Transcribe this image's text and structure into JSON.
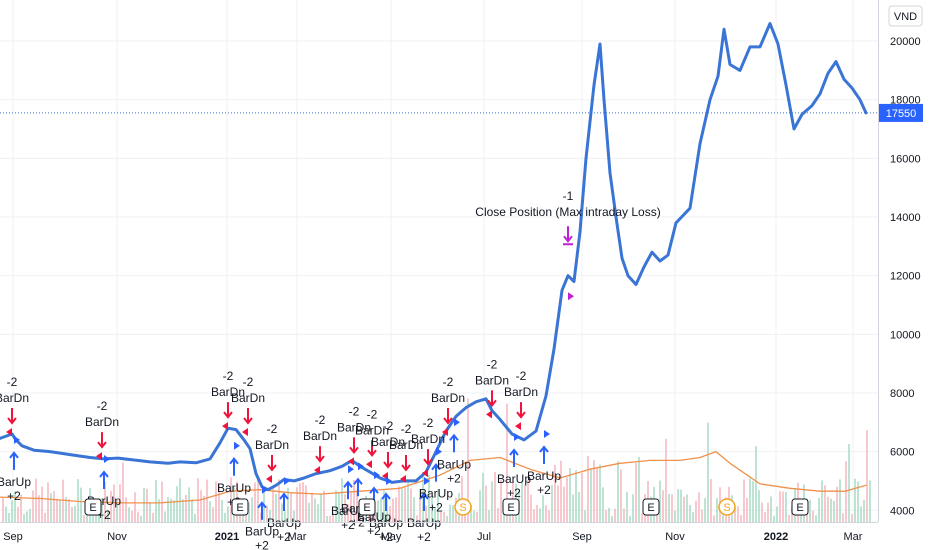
{
  "chart_data": {
    "type": "line",
    "currency": "VND",
    "last_price_label": "17550",
    "y_ticks": [
      4000,
      6000,
      8000,
      10000,
      12000,
      14000,
      16000,
      18000,
      20000
    ],
    "ylim": [
      3600,
      21400
    ],
    "x_tick_labels": [
      {
        "label": "Sep",
        "t": 13,
        "bold": false
      },
      {
        "label": "Nov",
        "t": 117,
        "bold": false
      },
      {
        "label": "2021",
        "t": 227,
        "bold": true
      },
      {
        "label": "Mar",
        "t": 297,
        "bold": false
      },
      {
        "label": "May",
        "t": 391,
        "bold": false
      },
      {
        "label": "Jul",
        "t": 484,
        "bold": false
      },
      {
        "label": "Sep",
        "t": 582,
        "bold": false
      },
      {
        "label": "Nov",
        "t": 675,
        "bold": false
      },
      {
        "label": "2022",
        "t": 776,
        "bold": true
      },
      {
        "label": "Mar",
        "t": 853,
        "bold": false
      }
    ],
    "series": [
      {
        "values": [
          [
            0,
            6450
          ],
          [
            12,
            6600
          ],
          [
            16,
            6400
          ],
          [
            22,
            6200
          ],
          [
            34,
            6050
          ],
          [
            50,
            6000
          ],
          [
            70,
            5900
          ],
          [
            90,
            5800
          ],
          [
            104,
            5750
          ],
          [
            118,
            5780
          ],
          [
            132,
            5720
          ],
          [
            150,
            5650
          ],
          [
            168,
            5600
          ],
          [
            180,
            5650
          ],
          [
            196,
            5620
          ],
          [
            210,
            5750
          ],
          [
            220,
            6300
          ],
          [
            228,
            6800
          ],
          [
            236,
            6750
          ],
          [
            244,
            6400
          ],
          [
            250,
            6100
          ],
          [
            256,
            5250
          ],
          [
            262,
            4800
          ],
          [
            268,
            4700
          ],
          [
            276,
            4850
          ],
          [
            284,
            5050
          ],
          [
            294,
            5000
          ],
          [
            304,
            5100
          ],
          [
            316,
            5250
          ],
          [
            330,
            5350
          ],
          [
            342,
            5500
          ],
          [
            352,
            5700
          ],
          [
            360,
            5500
          ],
          [
            370,
            5300
          ],
          [
            380,
            5100
          ],
          [
            392,
            4950
          ],
          [
            404,
            5000
          ],
          [
            416,
            5000
          ],
          [
            426,
            5300
          ],
          [
            436,
            6000
          ],
          [
            446,
            6700
          ],
          [
            456,
            7200
          ],
          [
            466,
            7500
          ],
          [
            476,
            7700
          ],
          [
            486,
            7800
          ],
          [
            492,
            7400
          ],
          [
            500,
            7100
          ],
          [
            512,
            6600
          ],
          [
            524,
            6400
          ],
          [
            536,
            6700
          ],
          [
            546,
            7900
          ],
          [
            554,
            9500
          ],
          [
            562,
            11500
          ],
          [
            568,
            12000
          ],
          [
            574,
            11800
          ],
          [
            580,
            13500
          ],
          [
            586,
            16000
          ],
          [
            594,
            18500
          ],
          [
            600,
            19900
          ],
          [
            604,
            18000
          ],
          [
            610,
            15500
          ],
          [
            616,
            14000
          ],
          [
            622,
            12600
          ],
          [
            628,
            12000
          ],
          [
            636,
            11700
          ],
          [
            644,
            12300
          ],
          [
            652,
            12800
          ],
          [
            660,
            12500
          ],
          [
            668,
            12700
          ],
          [
            676,
            13800
          ],
          [
            690,
            14300
          ],
          [
            700,
            16500
          ],
          [
            710,
            18000
          ],
          [
            718,
            18800
          ],
          [
            724,
            20400
          ],
          [
            730,
            19200
          ],
          [
            740,
            19000
          ],
          [
            750,
            19800
          ],
          [
            760,
            19800
          ],
          [
            770,
            20600
          ],
          [
            778,
            19900
          ],
          [
            786,
            18500
          ],
          [
            794,
            17000
          ],
          [
            802,
            17500
          ],
          [
            812,
            17800
          ],
          [
            820,
            18200
          ],
          [
            828,
            18900
          ],
          [
            836,
            19300
          ],
          [
            844,
            18700
          ],
          [
            852,
            18400
          ],
          [
            860,
            18000
          ],
          [
            866,
            17550
          ]
        ]
      },
      {
        "values": [
          [
            0,
            4450
          ],
          [
            40,
            4400
          ],
          [
            80,
            4300
          ],
          [
            120,
            4250
          ],
          [
            160,
            4250
          ],
          [
            200,
            4350
          ],
          [
            230,
            4650
          ],
          [
            260,
            4700
          ],
          [
            290,
            4600
          ],
          [
            320,
            4550
          ],
          [
            360,
            4650
          ],
          [
            400,
            4750
          ],
          [
            440,
            5200
          ],
          [
            470,
            5700
          ],
          [
            500,
            5800
          ],
          [
            530,
            5400
          ],
          [
            560,
            5100
          ],
          [
            590,
            5400
          ],
          [
            620,
            5600
          ],
          [
            650,
            5700
          ],
          [
            680,
            5700
          ],
          [
            700,
            5800
          ],
          [
            716,
            6000
          ],
          [
            730,
            5600
          ],
          [
            760,
            4900
          ],
          [
            790,
            4750
          ],
          [
            820,
            4650
          ],
          [
            845,
            4650
          ],
          [
            866,
            4850
          ]
        ]
      }
    ],
    "annotations": [
      {
        "text": "Close Position (Max intraday Loss)",
        "qty": "-1",
        "t": 568,
        "y": 11300,
        "kind": "close"
      },
      {
        "text": "BarDn",
        "qty": "-2",
        "t": 12,
        "y": 6600,
        "kind": "dn"
      },
      {
        "text": "BarDn",
        "qty": "-2",
        "t": 102,
        "y": 5780,
        "kind": "dn"
      },
      {
        "text": "BarDn",
        "qty": "-2",
        "t": 228,
        "y": 6800,
        "kind": "dn"
      },
      {
        "text": "BarDn",
        "qty": "-2",
        "t": 248,
        "y": 6600,
        "kind": "dn"
      },
      {
        "text": "BarDn",
        "qty": "-2",
        "t": 272,
        "y": 5000,
        "kind": "dn"
      },
      {
        "text": "BarDn",
        "qty": "-2",
        "t": 320,
        "y": 5300,
        "kind": "dn"
      },
      {
        "text": "BarDn",
        "qty": "-2",
        "t": 354,
        "y": 5600,
        "kind": "dn"
      },
      {
        "text": "BarDn",
        "qty": "-2",
        "t": 372,
        "y": 5500,
        "kind": "dn"
      },
      {
        "text": "BarDn",
        "qty": "-2",
        "t": 388,
        "y": 5100,
        "kind": "dn"
      },
      {
        "text": "BarDn",
        "qty": "-2",
        "t": 406,
        "y": 5000,
        "kind": "dn"
      },
      {
        "text": "BarDn",
        "qty": "-2",
        "t": 428,
        "y": 5200,
        "kind": "dn"
      },
      {
        "text": "BarDn",
        "qty": "-2",
        "t": 448,
        "y": 6600,
        "kind": "dn"
      },
      {
        "text": "BarDn",
        "qty": "-2",
        "t": 492,
        "y": 7200,
        "kind": "dn"
      },
      {
        "text": "BarDn",
        "qty": "-2",
        "t": 521,
        "y": 6800,
        "kind": "dn"
      },
      {
        "text": "BarUp",
        "qty": "+2",
        "t": 14,
        "y": 6400,
        "kind": "up"
      },
      {
        "text": "BarUp",
        "qty": "+2",
        "t": 104,
        "y": 5750,
        "kind": "up"
      },
      {
        "text": "BarUp",
        "qty": "+2",
        "t": 234,
        "y": 6200,
        "kind": "up"
      },
      {
        "text": "BarUp",
        "qty": "+2",
        "t": 262,
        "y": 4700,
        "kind": "up"
      },
      {
        "text": "BarUp",
        "qty": "+2",
        "t": 284,
        "y": 5000,
        "kind": "up"
      },
      {
        "text": "BarUp",
        "qty": "+2",
        "t": 348,
        "y": 5400,
        "kind": "up"
      },
      {
        "text": "BarUp",
        "qty": "+2",
        "t": 358,
        "y": 5500,
        "kind": "up"
      },
      {
        "text": "BarUp",
        "qty": "+2",
        "t": 374,
        "y": 5200,
        "kind": "up"
      },
      {
        "text": "BarUp",
        "qty": "+2",
        "t": 386,
        "y": 5000,
        "kind": "up"
      },
      {
        "text": "BarUp",
        "qty": "+2",
        "t": 424,
        "y": 5000,
        "kind": "up"
      },
      {
        "text": "BarUp",
        "qty": "+2",
        "t": 436,
        "y": 6000,
        "kind": "up"
      },
      {
        "text": "BarUp",
        "qty": "+2",
        "t": 454,
        "y": 7000,
        "kind": "up"
      },
      {
        "text": "BarUp",
        "qty": "+2",
        "t": 514,
        "y": 6500,
        "kind": "up"
      },
      {
        "text": "BarUp",
        "qty": "+2",
        "t": 544,
        "y": 6600,
        "kind": "up"
      }
    ],
    "event_markers": [
      {
        "label": "E",
        "t": 93,
        "kind": "earnings"
      },
      {
        "label": "E",
        "t": 240,
        "kind": "earnings"
      },
      {
        "label": "E",
        "t": 367,
        "kind": "earnings"
      },
      {
        "label": "S",
        "t": 463,
        "kind": "split"
      },
      {
        "label": "E",
        "t": 511,
        "kind": "earnings"
      },
      {
        "label": "E",
        "t": 651,
        "kind": "earnings"
      },
      {
        "label": "S",
        "t": 727,
        "kind": "split"
      },
      {
        "label": "E",
        "t": 800,
        "kind": "earnings"
      }
    ],
    "grid": true,
    "colors": {
      "price_line": "#3a75d5",
      "ma_line": "#f0914b",
      "bar_dn": "#f0143c",
      "bar_up": "#2962ff",
      "close_marker": "#c01fd6",
      "volume_up": "#a7d9c3",
      "volume_dn": "#f4b7bf",
      "last_price_bg": "#2962ff",
      "grid": "#eef0f3",
      "axis_text": "#131722",
      "split_marker": "#f2a51b"
    }
  }
}
